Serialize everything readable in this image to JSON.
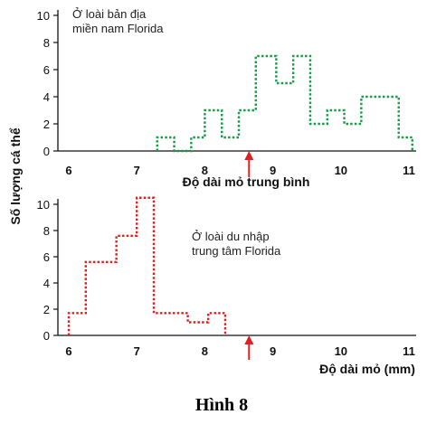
{
  "figure_caption": "Hình 8",
  "ylabel": "Số lượng cá thể",
  "chart_data": [
    {
      "type": "histogram",
      "annotation": [
        "Ở loài bản địa",
        "miền nam Florida"
      ],
      "xlabel": "Độ dài mỏ trung bình",
      "xlim": [
        6,
        11
      ],
      "ylim": [
        0,
        10
      ],
      "xticks": [
        6,
        7,
        8,
        9,
        10,
        11
      ],
      "yticks": [
        0,
        2,
        4,
        6,
        8,
        10
      ],
      "color": "#1a9a4a",
      "arrow_x": 8.65,
      "bins": [
        {
          "x0": 7.3,
          "x1": 7.55,
          "y": 1
        },
        {
          "x0": 7.55,
          "x1": 7.8,
          "y": 0
        },
        {
          "x0": 7.8,
          "x1": 8.0,
          "y": 1
        },
        {
          "x0": 8.0,
          "x1": 8.25,
          "y": 3
        },
        {
          "x0": 8.25,
          "x1": 8.5,
          "y": 1
        },
        {
          "x0": 8.5,
          "x1": 8.75,
          "y": 3
        },
        {
          "x0": 8.75,
          "x1": 9.05,
          "y": 7
        },
        {
          "x0": 9.05,
          "x1": 9.3,
          "y": 5
        },
        {
          "x0": 9.3,
          "x1": 9.55,
          "y": 7
        },
        {
          "x0": 9.55,
          "x1": 9.8,
          "y": 2
        },
        {
          "x0": 9.8,
          "x1": 10.05,
          "y": 3
        },
        {
          "x0": 10.05,
          "x1": 10.3,
          "y": 2
        },
        {
          "x0": 10.3,
          "x1": 10.85,
          "y": 4
        },
        {
          "x0": 10.85,
          "x1": 11.05,
          "y": 1
        }
      ]
    },
    {
      "type": "histogram",
      "annotation": [
        "Ở loài du nhập",
        "trung tâm Florida"
      ],
      "xlabel": "Độ dài mỏ (mm)",
      "xlim": [
        6,
        11
      ],
      "ylim": [
        0,
        10
      ],
      "xticks": [
        6,
        7,
        8,
        9,
        10,
        11
      ],
      "yticks": [
        0,
        2,
        4,
        6,
        8,
        10
      ],
      "color": "#e02020",
      "arrow_x": 8.65,
      "bins": [
        {
          "x0": 6.0,
          "x1": 6.25,
          "y": 1.7
        },
        {
          "x0": 6.25,
          "x1": 6.7,
          "y": 5.6
        },
        {
          "x0": 6.7,
          "x1": 7.0,
          "y": 7.6
        },
        {
          "x0": 7.0,
          "x1": 7.25,
          "y": 10.5
        },
        {
          "x0": 7.25,
          "x1": 7.75,
          "y": 1.7
        },
        {
          "x0": 7.75,
          "x1": 8.05,
          "y": 1.0
        },
        {
          "x0": 8.05,
          "x1": 8.3,
          "y": 1.7
        }
      ]
    }
  ]
}
